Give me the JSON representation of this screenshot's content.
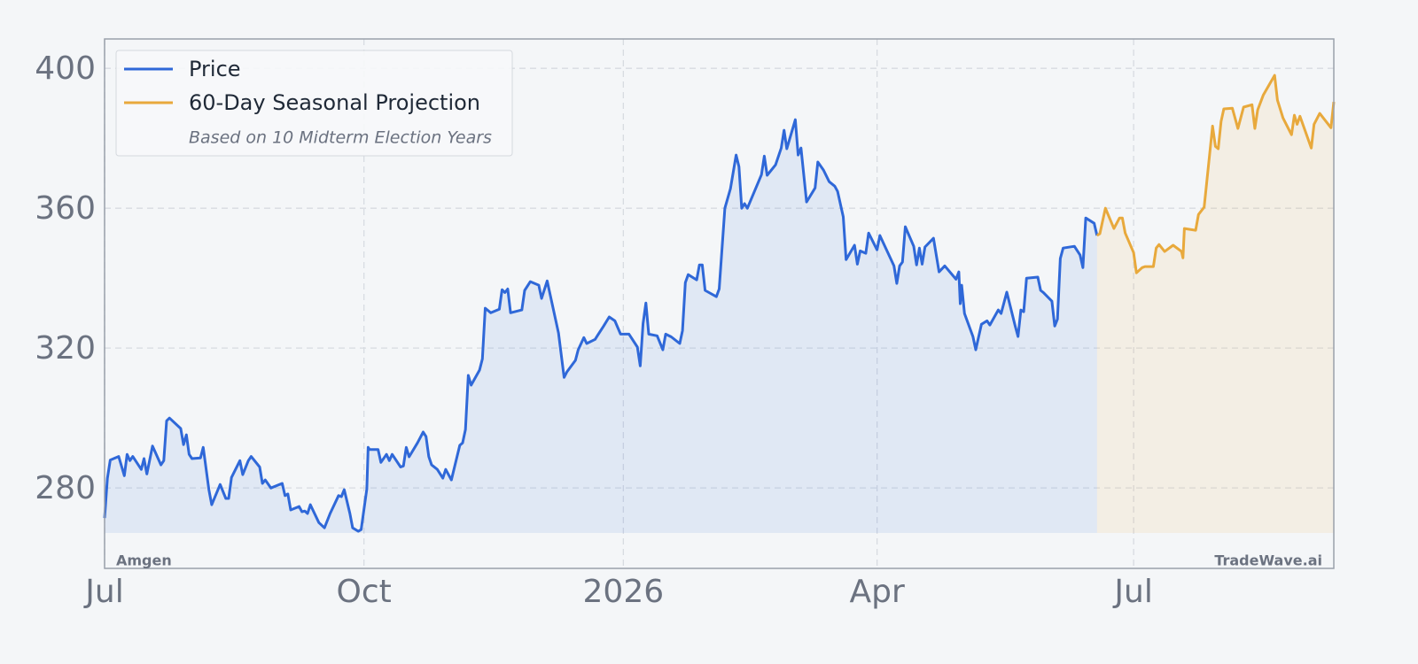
{
  "chart_data": {
    "type": "line",
    "legend_note": "Based on 10 Midterm Election Years",
    "source_label": "Amgen",
    "brand": "TradeWave.ai",
    "xlim": [
      0,
      436
    ],
    "xticks": [
      {
        "value": 0,
        "label": "Jul"
      },
      {
        "value": 92,
        "label": "Oct"
      },
      {
        "value": 184,
        "label": "2026"
      },
      {
        "value": 274,
        "label": "Apr"
      },
      {
        "value": 365,
        "label": "Jul"
      }
    ],
    "ylim": [
      257,
      408.4
    ],
    "yticks": [
      280,
      320,
      360,
      400
    ],
    "grid": true,
    "legend": "upper left",
    "series": [
      {
        "name": "Price",
        "color": "#2f68d8",
        "x": [
          0,
          1,
          2,
          5,
          7,
          8,
          9,
          10,
          13,
          14,
          15,
          17,
          20,
          21,
          22,
          23,
          27,
          28,
          29,
          30,
          31,
          34,
          35,
          37,
          38,
          41,
          43,
          44,
          45,
          48,
          49,
          51,
          52,
          55,
          56,
          57,
          59,
          63,
          64,
          65,
          66,
          69,
          70,
          71,
          72,
          73,
          76,
          78,
          80,
          83,
          84,
          85,
          87,
          88,
          90,
          91,
          93,
          93.5,
          94,
          97,
          98,
          100,
          101,
          102,
          105,
          106,
          107,
          108,
          111,
          113,
          114,
          115,
          116,
          118,
          120,
          121,
          123,
          126,
          127,
          128,
          129,
          130,
          133,
          134,
          135,
          137,
          140,
          141,
          142,
          143,
          144,
          148,
          149,
          151,
          154,
          155,
          157,
          161,
          163,
          164,
          167,
          168,
          170,
          171,
          174,
          175,
          177,
          179,
          181,
          183,
          186,
          189,
          190,
          191,
          192,
          193,
          196,
          198,
          199,
          201,
          204,
          205,
          206,
          207,
          210,
          211,
          212,
          213,
          217,
          218,
          220,
          222,
          224,
          225,
          226,
          227,
          228,
          233,
          234,
          235,
          238,
          240,
          241,
          242,
          245,
          246,
          247,
          249,
          252,
          253,
          255,
          257,
          259,
          260,
          262,
          263,
          266,
          267,
          268,
          270,
          271,
          274,
          275,
          280,
          281,
          282,
          283,
          284,
          287,
          288,
          289,
          290,
          291,
          294,
          296,
          298,
          302,
          303,
          303.5,
          304,
          305,
          308,
          309,
          311,
          313,
          314,
          317,
          318,
          320,
          323,
          324,
          325,
          326,
          327,
          331,
          332,
          333,
          336,
          337,
          338,
          339,
          340,
          344,
          346,
          347,
          348,
          351,
          352
        ],
        "values": [
          271.4,
          282.8,
          288,
          289,
          283.5,
          289.6,
          287.8,
          289,
          285.3,
          288.4,
          284,
          292,
          286.6,
          287.8,
          299.2,
          300,
          297,
          292.4,
          295.2,
          289.6,
          288.4,
          288.6,
          291.6,
          279.5,
          275.2,
          281,
          277,
          277,
          283,
          287.8,
          283.8,
          287.8,
          289,
          286,
          281.3,
          282.3,
          280,
          281.3,
          277.8,
          278.3,
          273.7,
          274.7,
          273.2,
          273.4,
          272.7,
          275.2,
          270.1,
          268.6,
          272.7,
          277.8,
          277.5,
          279.5,
          272.7,
          268.6,
          267.6,
          268.1,
          279.7,
          291.6,
          291,
          291,
          287.3,
          289.6,
          287.8,
          289.6,
          286,
          286.3,
          291.6,
          288.9,
          292.9,
          296,
          294.7,
          289,
          286.6,
          285.3,
          282.8,
          285.3,
          282.3,
          292.2,
          292.9,
          296.7,
          312.2,
          309.4,
          313.7,
          316.9,
          331.4,
          330.1,
          331.1,
          336.7,
          335.9,
          336.9,
          330.1,
          330.9,
          336.5,
          339,
          338,
          334.2,
          339.2,
          324.3,
          311.6,
          313.2,
          316.5,
          319.5,
          323,
          321.3,
          322.5,
          323.8,
          326.3,
          328.9,
          327.8,
          324,
          324,
          320.3,
          314.9,
          327,
          332.9,
          324,
          323.5,
          319.5,
          324,
          323.2,
          321.3,
          325,
          338.7,
          341,
          339.5,
          343.8,
          343.8,
          336.5,
          334.7,
          336.9,
          360,
          365.6,
          375.2,
          371.9,
          360,
          361.3,
          360,
          369.6,
          374.9,
          369.4,
          372.4,
          377.2,
          382.3,
          377,
          385.3,
          375.2,
          377.2,
          361.8,
          365.8,
          373.2,
          370.9,
          367.6,
          366.3,
          364.8,
          357.5,
          345.3,
          349.4,
          344,
          347.8,
          347.1,
          352.9,
          348.1,
          352.2,
          343.5,
          338.5,
          343.5,
          344.6,
          354.7,
          349.1,
          343.8,
          348.6,
          344,
          348.9,
          351.4,
          341.8,
          343.5,
          339.7,
          341.8,
          332.7,
          338,
          329.9,
          323.3,
          319.5,
          326.8,
          327.8,
          326.6,
          330.9,
          329.9,
          336,
          326.3,
          323.3,
          330.9,
          330.4,
          340,
          340.3,
          336.5,
          335.9,
          333.4,
          326.3,
          328.3,
          345.6,
          348.6,
          349.1,
          346.6,
          343,
          357.2,
          355.7,
          352.2
        ]
      },
      {
        "name": "60-Day Seasonal Projection",
        "color": "#e8a93c",
        "x": [
          352,
          353,
          355,
          358,
          360,
          361,
          362,
          365,
          366,
          368,
          369,
          372,
          373,
          374,
          376,
          379,
          382,
          382.5,
          383,
          387,
          388,
          390,
          393,
          394,
          395,
          396,
          397,
          400,
          402,
          404,
          407,
          408,
          409,
          411,
          415,
          416,
          418,
          421,
          422,
          423,
          424,
          428,
          429,
          431,
          435,
          436
        ],
        "values": [
          352.2,
          352.7,
          360,
          354.2,
          357.2,
          357.2,
          352.9,
          347.3,
          341.5,
          343,
          343.3,
          343.3,
          348.6,
          349.6,
          347.6,
          349.4,
          347.6,
          345.8,
          354.2,
          353.7,
          358.2,
          360.3,
          383.5,
          377.7,
          377,
          384.8,
          388.4,
          388.6,
          382.8,
          388.9,
          389.6,
          382.8,
          388.1,
          392.4,
          398,
          390.9,
          385.8,
          381,
          386.6,
          384,
          386.3,
          377.2,
          384,
          387.1,
          383,
          390.4
        ]
      }
    ]
  }
}
